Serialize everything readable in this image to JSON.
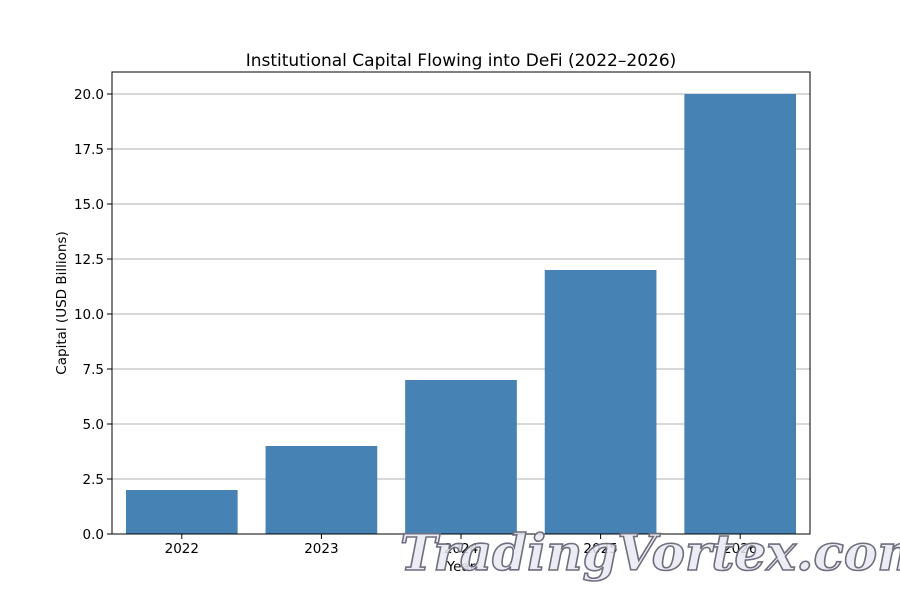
{
  "chart_data": {
    "type": "bar",
    "title": "Institutional Capital Flowing into DeFi (2022–2026)",
    "xlabel": "Year",
    "ylabel": "Capital (USD Billions)",
    "categories": [
      "2022",
      "2023",
      "2024",
      "2025",
      "2026"
    ],
    "values": [
      2,
      4,
      7,
      12,
      20
    ],
    "ylim": [
      0,
      21
    ],
    "yticks": [
      0,
      2.5,
      5,
      7.5,
      10,
      12.5,
      15,
      17.5,
      20
    ],
    "ytick_labels": [
      "0.0",
      "2.5",
      "5.0",
      "7.5",
      "10.0",
      "12.5",
      "15.0",
      "17.5",
      "20.0"
    ],
    "grid": "y",
    "bar_color": "#4682b4"
  },
  "watermark": "TradingVortex.com"
}
